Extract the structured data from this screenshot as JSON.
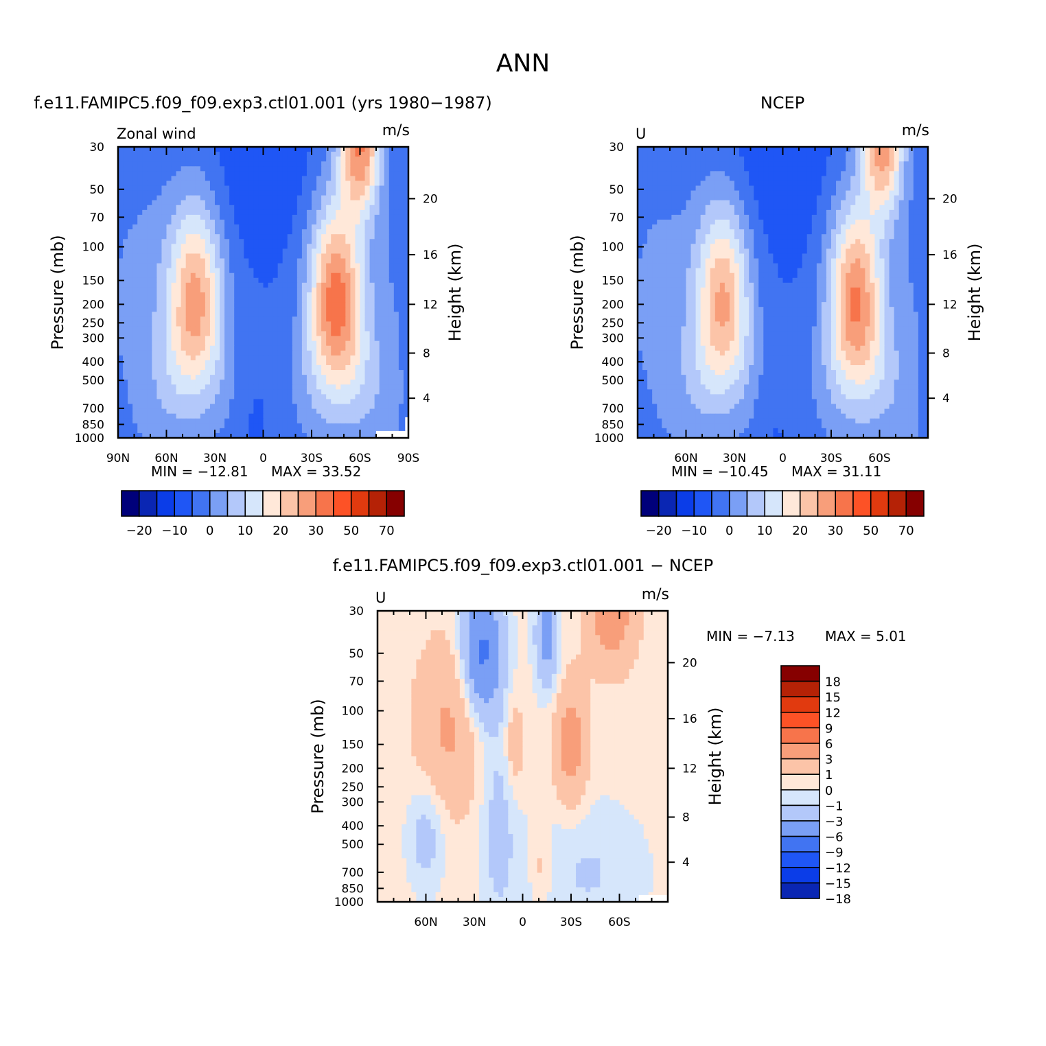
{
  "page": {
    "title": "ANN"
  },
  "panels": {
    "model": {
      "title": "f.e11.FAMIPC5.f09_f09.exp3.ctl01.001 (yrs 1980−1987)",
      "left_label": "Zonal wind",
      "units": "m/s",
      "min_text": "MIN = −12.81",
      "max_text": "MAX =   33.52"
    },
    "obs": {
      "title": "NCEP",
      "left_label": "U",
      "units": "m/s",
      "min_text": "MIN = −10.45",
      "max_text": "MAX =   31.11"
    },
    "diff": {
      "title": "f.e11.FAMIPC5.f09_f09.exp3.ctl01.001 − NCEP",
      "left_label": "U",
      "units": "m/s",
      "min_text": "MIN =   −7.13",
      "max_text": "MAX =     5.01"
    }
  },
  "chart_data": [
    {
      "name": "model",
      "type": "heatmap",
      "variable": "Zonal wind",
      "units": "m/s",
      "x_ticks": [
        "90N",
        "60N",
        "30N",
        "0",
        "30S",
        "60S",
        "90S"
      ],
      "x_tick_values": [
        90,
        60,
        30,
        0,
        -30,
        -60,
        -90
      ],
      "y_ticks": [
        "30",
        "50",
        "70",
        "100",
        "150",
        "200",
        "250",
        "300",
        "400",
        "500",
        "700",
        "850",
        "1000"
      ],
      "y_tick_values": [
        30,
        50,
        70,
        100,
        150,
        200,
        250,
        300,
        400,
        500,
        700,
        850,
        1000
      ],
      "y_label": "Pressure (mb)",
      "y2_ticks": [
        "4",
        "8",
        "12",
        "16",
        "20"
      ],
      "y2_label": "Height (km)",
      "y_scale": "log",
      "xlim": [
        90,
        -90
      ],
      "ylim": [
        1000,
        30
      ],
      "min": -12.81,
      "max": 33.52,
      "contour_levels": [
        -25,
        -20,
        -15,
        -10,
        -5,
        0,
        5,
        10,
        15,
        20,
        25,
        30,
        40,
        50,
        60,
        70,
        80
      ],
      "colorbar_labels": [
        "−20",
        "−10",
        "0",
        "10",
        "20",
        "30",
        "50",
        "70"
      ],
      "colors": [
        "#00007a",
        "#0a26b3",
        "#0b3de8",
        "#1f56f5",
        "#4174f2",
        "#7a9ff5",
        "#b3c8fa",
        "#d6e6fb",
        "#ffe8d9",
        "#fcc4a8",
        "#f89e7a",
        "#f7744b",
        "#fd5226",
        "#e13a0f",
        "#b52206",
        "#860000"
      ],
      "features": [
        {
          "type": "jet",
          "lat": 42,
          "p": 200,
          "peak": 27
        },
        {
          "type": "jet",
          "lat": -45,
          "p": 200,
          "peak": 33.5
        },
        {
          "type": "strat_jet",
          "lat": -60,
          "p": 30,
          "peak": 33
        }
      ]
    },
    {
      "name": "obs",
      "type": "heatmap",
      "variable": "U",
      "units": "m/s",
      "x_ticks": [
        "60N",
        "30N",
        "0",
        "30S",
        "60S"
      ],
      "x_tick_values": [
        60,
        30,
        0,
        -30,
        -60
      ],
      "y_ticks": [
        "30",
        "50",
        "70",
        "100",
        "150",
        "200",
        "250",
        "300",
        "400",
        "500",
        "700",
        "850",
        "1000"
      ],
      "y_tick_values": [
        30,
        50,
        70,
        100,
        150,
        200,
        250,
        300,
        400,
        500,
        700,
        850,
        1000
      ],
      "y_label": "Pressure (mb)",
      "y2_ticks": [
        "4",
        "8",
        "12",
        "16",
        "20"
      ],
      "y2_label": "Height (km)",
      "y_scale": "log",
      "xlim": [
        90,
        -90
      ],
      "ylim": [
        1000,
        30
      ],
      "min": -10.45,
      "max": 31.11,
      "contour_levels": [
        -25,
        -20,
        -15,
        -10,
        -5,
        0,
        5,
        10,
        15,
        20,
        25,
        30,
        40,
        50,
        60,
        70,
        80
      ],
      "colorbar_labels": [
        "−20",
        "−10",
        "0",
        "10",
        "20",
        "30",
        "50",
        "70"
      ],
      "colors": [
        "#00007a",
        "#0a26b3",
        "#0b3de8",
        "#1f56f5",
        "#4174f2",
        "#7a9ff5",
        "#b3c8fa",
        "#d6e6fb",
        "#ffe8d9",
        "#fcc4a8",
        "#f89e7a",
        "#f7744b",
        "#fd5226",
        "#e13a0f",
        "#b52206",
        "#860000"
      ],
      "features": [
        {
          "type": "jet",
          "lat": 37,
          "p": 200,
          "peak": 26
        },
        {
          "type": "jet",
          "lat": -45,
          "p": 200,
          "peak": 31
        },
        {
          "type": "strat_jet",
          "lat": -62,
          "p": 30,
          "peak": 31
        }
      ]
    },
    {
      "name": "diff",
      "type": "heatmap",
      "variable": "U",
      "units": "m/s",
      "x_ticks": [
        "60N",
        "30N",
        "0",
        "30S",
        "60S"
      ],
      "x_tick_values": [
        60,
        30,
        0,
        -30,
        -60
      ],
      "y_ticks": [
        "30",
        "50",
        "70",
        "100",
        "150",
        "200",
        "250",
        "300",
        "400",
        "500",
        "700",
        "850",
        "1000"
      ],
      "y_tick_values": [
        30,
        50,
        70,
        100,
        150,
        200,
        250,
        300,
        400,
        500,
        700,
        850,
        1000
      ],
      "y_label": "Pressure (mb)",
      "y2_ticks": [
        "4",
        "8",
        "12",
        "16",
        "20"
      ],
      "y2_label": "Height (km)",
      "y_scale": "log",
      "xlim": [
        90,
        -90
      ],
      "ylim": [
        1000,
        30
      ],
      "min": -7.13,
      "max": 5.01,
      "contour_levels": [
        -18,
        -15,
        -12,
        -9,
        -6,
        -3,
        -1,
        0,
        1,
        3,
        6,
        9,
        12,
        15,
        18
      ],
      "colorbar_labels": [
        "18",
        "15",
        "12",
        "9",
        "6",
        "3",
        "1",
        "0",
        "−1",
        "−3",
        "−6",
        "−9",
        "−12",
        "−15",
        "−18"
      ],
      "colors": [
        "#0a26b3",
        "#0b3de8",
        "#1f56f5",
        "#4174f2",
        "#7a9ff5",
        "#b3c8fa",
        "#d6e6fb",
        "#ffe8d9",
        "#fcc4a8",
        "#f89e7a",
        "#f7744b",
        "#fd5226",
        "#e13a0f",
        "#b52206",
        "#860000"
      ],
      "features": [
        {
          "type": "pos_anomaly",
          "lat": -55,
          "p": 30,
          "peak": 4.5
        },
        {
          "type": "pos_anomaly",
          "lat": -30,
          "p": 150,
          "peak": 4
        },
        {
          "type": "pos_anomaly",
          "lat": 45,
          "p": 120,
          "peak": 3
        },
        {
          "type": "neg_anomaly",
          "lat": 25,
          "p": 50,
          "peak": -7.1
        }
      ]
    }
  ]
}
